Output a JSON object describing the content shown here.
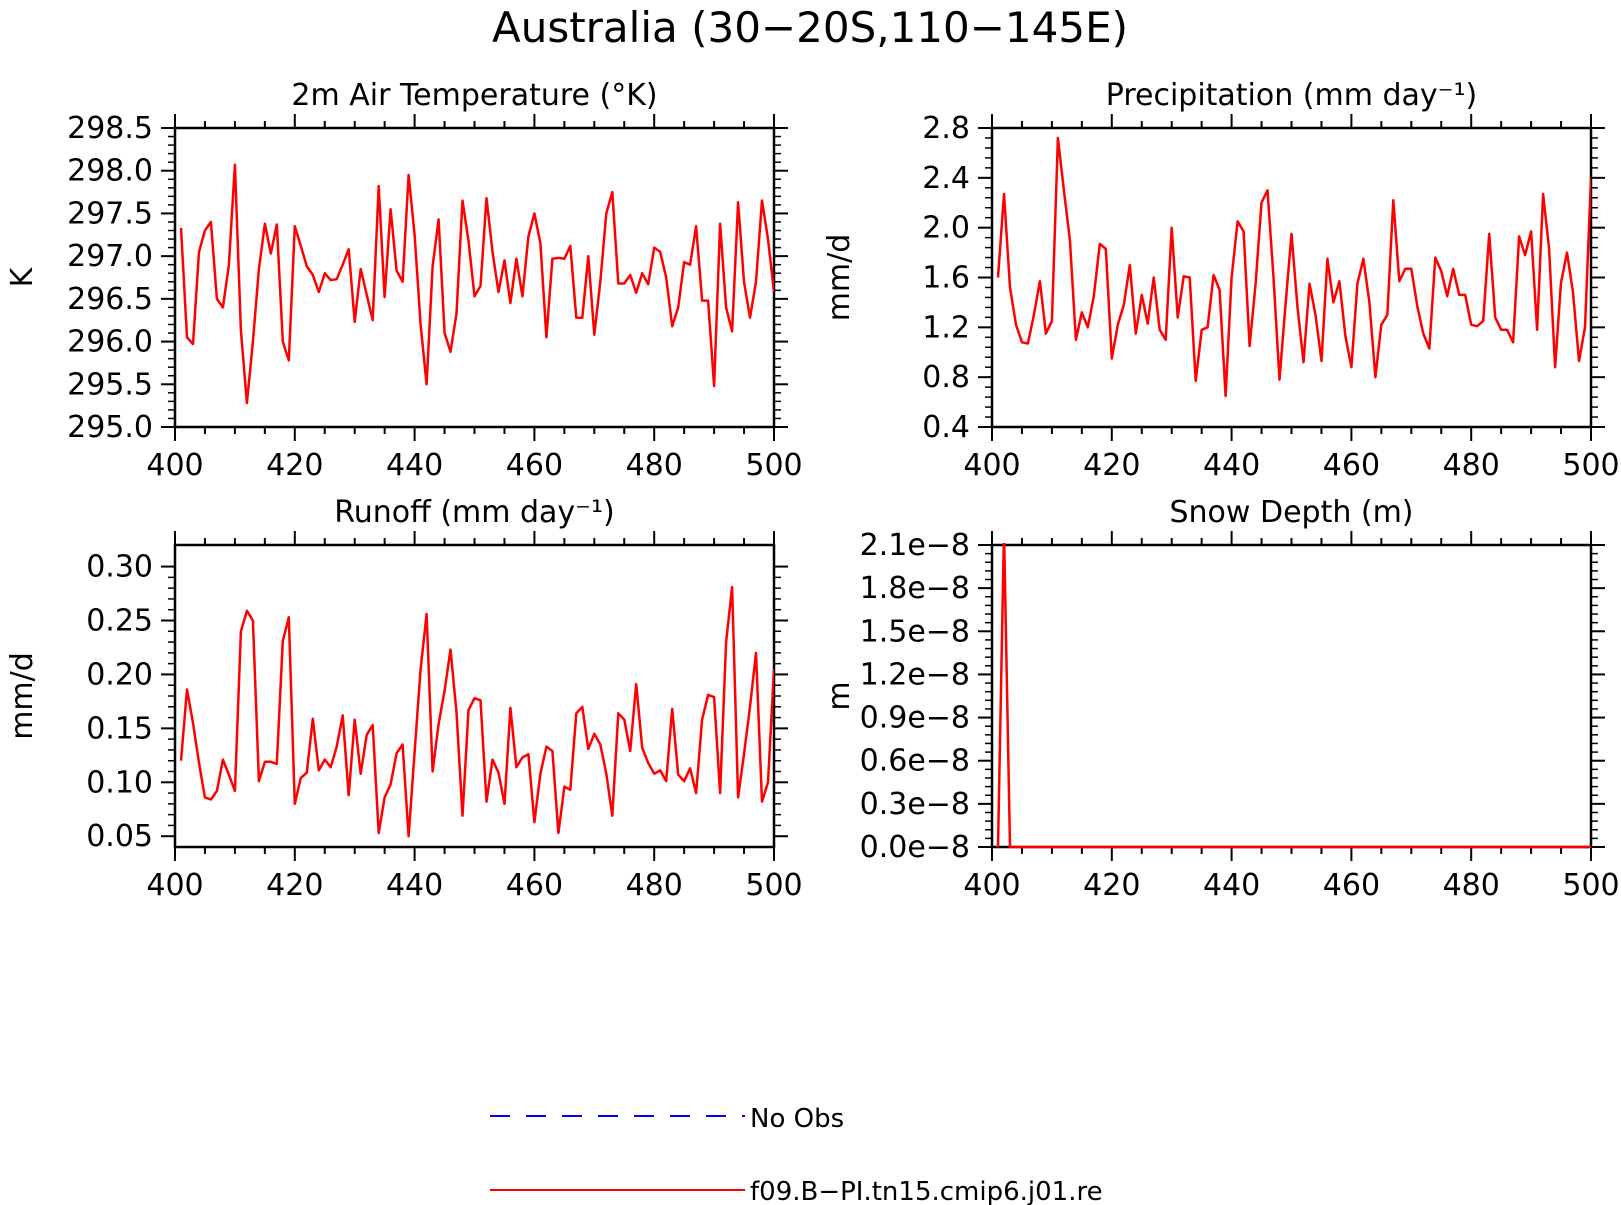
{
  "title": "Australia (30−20S,110−145E)",
  "legend": {
    "placement": "bottom-center",
    "items": [
      {
        "label": "No Obs",
        "color": "#0000ff",
        "style": "dashed"
      },
      {
        "label": "f09.B−PI.tn15.cmip6.j01.re",
        "color": "#ff0000",
        "style": "solid"
      }
    ]
  },
  "colors": {
    "series": "#ff0000",
    "obs": "#0000ff",
    "axes": "#000000"
  },
  "chart_data": [
    {
      "type": "line",
      "title": "2m Air Temperature (°K)",
      "ylabel": "K",
      "xlim": [
        400,
        500
      ],
      "ylim": [
        295.0,
        298.5
      ],
      "xticks": [
        400,
        420,
        440,
        460,
        480,
        500
      ],
      "yticks": [
        295.0,
        295.5,
        296.0,
        296.5,
        297.0,
        297.5,
        298.0,
        298.5
      ],
      "ytick_labels": [
        "295.0",
        "295.5",
        "296.0",
        "296.5",
        "297.0",
        "297.5",
        "298.0",
        "298.5"
      ],
      "x_start": 401,
      "series": [
        {
          "color": "#ff0000",
          "values": [
            297.33,
            296.05,
            295.97,
            297.05,
            297.3,
            297.4,
            296.5,
            296.4,
            296.9,
            298.07,
            296.13,
            295.28,
            296.0,
            296.85,
            297.38,
            297.03,
            297.37,
            296.0,
            295.78,
            297.35,
            297.12,
            296.88,
            296.78,
            296.58,
            296.8,
            296.72,
            296.73,
            296.9,
            297.08,
            296.23,
            296.85,
            296.55,
            296.25,
            297.82,
            296.52,
            297.55,
            296.83,
            296.7,
            297.95,
            297.25,
            296.2,
            295.5,
            296.88,
            297.43,
            296.1,
            295.88,
            296.33,
            297.65,
            297.18,
            296.53,
            296.65,
            297.68,
            297.05,
            296.58,
            296.95,
            296.45,
            296.97,
            296.53,
            297.23,
            297.5,
            297.15,
            296.05,
            296.97,
            296.98,
            296.97,
            297.12,
            296.28,
            296.28,
            297.0,
            296.08,
            296.7,
            297.5,
            297.75,
            296.68,
            296.68,
            296.78,
            296.57,
            296.8,
            296.67,
            297.1,
            297.05,
            296.75,
            296.18,
            296.4,
            296.93,
            296.9,
            297.35,
            296.48,
            296.48,
            295.48,
            297.38,
            296.4,
            296.12,
            297.63,
            296.7,
            296.28,
            296.7,
            297.65,
            297.2,
            296.58
          ]
        }
      ]
    },
    {
      "type": "line",
      "title": "Precipitation (mm day⁻¹)",
      "ylabel": "mm/d",
      "xlim": [
        400,
        500
      ],
      "ylim": [
        0.4,
        2.8
      ],
      "xticks": [
        400,
        420,
        440,
        460,
        480,
        500
      ],
      "yticks": [
        0.4,
        0.8,
        1.2,
        1.6,
        2.0,
        2.4,
        2.8
      ],
      "ytick_labels": [
        "0.4",
        "0.8",
        "1.2",
        "1.6",
        "2.0",
        "2.4",
        "2.8"
      ],
      "x_start": 401,
      "series": [
        {
          "color": "#ff0000",
          "values": [
            1.6,
            2.27,
            1.52,
            1.22,
            1.08,
            1.07,
            1.3,
            1.57,
            1.15,
            1.25,
            2.72,
            2.3,
            1.9,
            1.1,
            1.32,
            1.2,
            1.45,
            1.87,
            1.83,
            0.95,
            1.22,
            1.38,
            1.7,
            1.15,
            1.46,
            1.23,
            1.6,
            1.18,
            1.1,
            2.0,
            1.28,
            1.61,
            1.6,
            0.77,
            1.18,
            1.2,
            1.62,
            1.5,
            0.65,
            1.6,
            2.05,
            1.97,
            1.05,
            1.55,
            2.2,
            2.3,
            1.6,
            0.78,
            1.38,
            1.95,
            1.36,
            0.92,
            1.55,
            1.3,
            0.93,
            1.75,
            1.4,
            1.57,
            1.13,
            0.88,
            1.55,
            1.75,
            1.4,
            0.8,
            1.22,
            1.3,
            2.22,
            1.57,
            1.67,
            1.67,
            1.37,
            1.15,
            1.03,
            1.76,
            1.65,
            1.45,
            1.67,
            1.46,
            1.46,
            1.22,
            1.21,
            1.25,
            1.95,
            1.28,
            1.18,
            1.18,
            1.08,
            1.93,
            1.78,
            1.97,
            1.18,
            2.27,
            1.83,
            0.88,
            1.56,
            1.8,
            1.48,
            0.93,
            1.2,
            2.4
          ]
        }
      ]
    },
    {
      "type": "line",
      "title": "Runoff (mm day⁻¹)",
      "ylabel": "mm/d",
      "xlim": [
        400,
        500
      ],
      "ylim": [
        0.04,
        0.32
      ],
      "xticks": [
        400,
        420,
        440,
        460,
        480,
        500
      ],
      "yticks": [
        0.05,
        0.1,
        0.15,
        0.2,
        0.25,
        0.3
      ],
      "ytick_labels": [
        "0.05",
        "0.10",
        "0.15",
        "0.20",
        "0.25",
        "0.30"
      ],
      "x_start": 401,
      "series": [
        {
          "color": "#ff0000",
          "values": [
            0.12,
            0.186,
            0.155,
            0.118,
            0.086,
            0.084,
            0.092,
            0.121,
            0.107,
            0.092,
            0.24,
            0.259,
            0.25,
            0.101,
            0.119,
            0.119,
            0.117,
            0.231,
            0.253,
            0.08,
            0.104,
            0.109,
            0.159,
            0.111,
            0.121,
            0.114,
            0.133,
            0.162,
            0.088,
            0.158,
            0.108,
            0.144,
            0.153,
            0.053,
            0.086,
            0.098,
            0.127,
            0.135,
            0.05,
            0.128,
            0.205,
            0.256,
            0.11,
            0.154,
            0.185,
            0.223,
            0.165,
            0.069,
            0.167,
            0.178,
            0.176,
            0.082,
            0.121,
            0.109,
            0.08,
            0.169,
            0.114,
            0.123,
            0.126,
            0.063,
            0.108,
            0.133,
            0.129,
            0.053,
            0.096,
            0.093,
            0.164,
            0.17,
            0.131,
            0.145,
            0.135,
            0.108,
            0.069,
            0.164,
            0.158,
            0.129,
            0.191,
            0.132,
            0.118,
            0.108,
            0.111,
            0.101,
            0.168,
            0.107,
            0.101,
            0.113,
            0.09,
            0.158,
            0.181,
            0.179,
            0.09,
            0.23,
            0.281,
            0.086,
            0.126,
            0.17,
            0.22,
            0.082,
            0.1,
            0.205
          ]
        }
      ]
    },
    {
      "type": "line",
      "title": "Snow Depth (m)",
      "ylabel": "m",
      "xlim": [
        400,
        500
      ],
      "ylim": [
        0.0,
        2.1e-08
      ],
      "xticks": [
        400,
        420,
        440,
        460,
        480,
        500
      ],
      "yticks": [
        0.0,
        3e-09,
        6e-09,
        9e-09,
        1.2e-08,
        1.5e-08,
        1.8e-08,
        2.1e-08
      ],
      "ytick_labels": [
        "0.0e−8",
        "0.3e−8",
        "0.6e−8",
        "0.9e−8",
        "1.2e−8",
        "1.5e−8",
        "1.8e−8",
        "2.1e−8"
      ],
      "x_start": 401,
      "series": [
        {
          "color": "#ff0000",
          "values": [
            0,
            2.2e-08,
            0,
            0,
            0,
            0,
            0,
            0,
            0,
            0,
            0,
            0,
            0,
            0,
            0,
            0,
            0,
            0,
            0,
            0,
            0,
            0,
            0,
            0,
            0,
            0,
            0,
            0,
            0,
            0,
            0,
            0,
            0,
            0,
            0,
            0,
            0,
            0,
            0,
            0,
            0,
            0,
            0,
            0,
            0,
            0,
            0,
            0,
            0,
            0,
            0,
            0,
            0,
            0,
            0,
            0,
            0,
            0,
            0,
            0,
            0,
            0,
            0,
            0,
            0,
            0,
            0,
            0,
            0,
            0,
            0,
            0,
            0,
            0,
            0,
            0,
            0,
            0,
            0,
            0,
            0,
            0,
            0,
            0,
            0,
            0,
            0,
            0,
            0,
            0,
            0,
            0,
            0,
            0,
            0,
            0,
            0,
            0,
            0,
            0
          ]
        }
      ]
    }
  ]
}
